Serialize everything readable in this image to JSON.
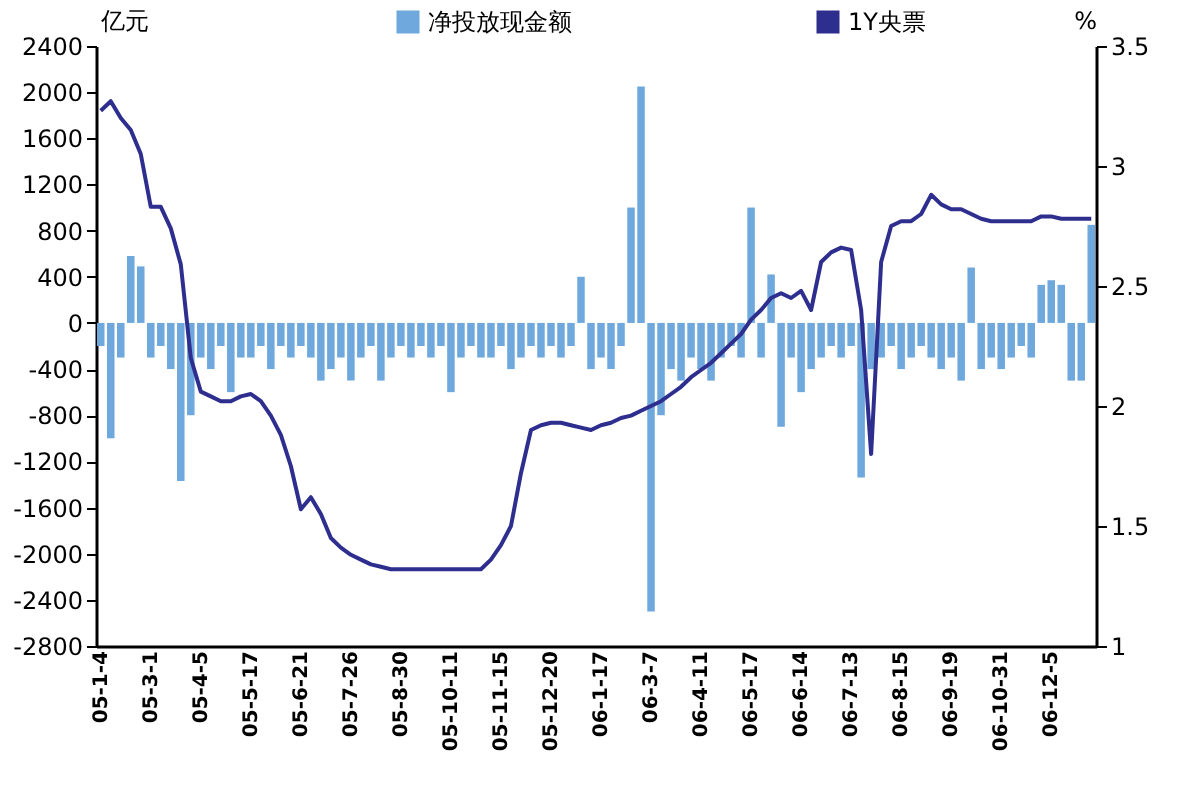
{
  "chart_data": {
    "type": "bar",
    "ylabel": "亿元",
    "y2label": "%",
    "legend": "top",
    "grid": false,
    "categories": [
      "05-1-4",
      null,
      null,
      null,
      null,
      "05-3-1",
      null,
      null,
      null,
      null,
      "05-4-5",
      null,
      null,
      null,
      null,
      "05-5-17",
      null,
      null,
      null,
      null,
      "05-6-21",
      null,
      null,
      null,
      null,
      "05-7-26",
      null,
      null,
      null,
      null,
      "05-8-30",
      null,
      null,
      null,
      null,
      "05-10-11",
      null,
      null,
      null,
      null,
      "05-11-15",
      null,
      null,
      null,
      null,
      "05-12-20",
      null,
      null,
      null,
      null,
      "06-1-17",
      null,
      null,
      null,
      null,
      "06-3-7",
      null,
      null,
      null,
      null,
      "06-4-11",
      null,
      null,
      null,
      null,
      "06-5-17",
      null,
      null,
      null,
      null,
      "06-6-14",
      null,
      null,
      null,
      null,
      "06-7-13",
      null,
      null,
      null,
      null,
      "06-8-15",
      null,
      null,
      null,
      null,
      "06-9-19",
      null,
      null,
      null,
      null,
      "06-10-31",
      null,
      null,
      null,
      null,
      "06-12-5",
      null,
      null,
      null,
      null
    ],
    "ylim": [
      -2800,
      2400
    ],
    "yticks": [
      -2800,
      -2400,
      -2000,
      -1600,
      -1200,
      -800,
      -400,
      0,
      400,
      800,
      1200,
      1600,
      2000,
      2400
    ],
    "y2lim": [
      1,
      3.5
    ],
    "y2ticks": [
      1,
      1.5,
      2,
      2.5,
      3,
      3.5
    ],
    "series": [
      {
        "name": "净投放现金额",
        "color": "#6fa8dc",
        "values": [
          -200,
          -1000,
          -300,
          580,
          490,
          -300,
          -200,
          -400,
          -1370,
          -800,
          -300,
          -400,
          -200,
          -600,
          -300,
          -300,
          -200,
          -400,
          -200,
          -300,
          -200,
          -300,
          -500,
          -400,
          -300,
          -500,
          -300,
          -200,
          -500,
          -300,
          -200,
          -300,
          -200,
          -300,
          -200,
          -600,
          -300,
          -200,
          -300,
          -300,
          -200,
          -400,
          -300,
          -200,
          -300,
          -200,
          -300,
          -200,
          400,
          -400,
          -300,
          -400,
          -200,
          1000,
          2050,
          -2500,
          -800,
          -400,
          -500,
          -300,
          -400,
          -500,
          -300,
          -200,
          -300,
          1000,
          -300,
          420,
          -900,
          -300,
          -600,
          -400,
          -300,
          -200,
          -300,
          -200,
          -1340,
          -400,
          -300,
          -200,
          -400,
          -300,
          -200,
          -300,
          -400,
          -300,
          -500,
          480,
          -400,
          -300,
          -400,
          -300,
          -200,
          -300,
          330,
          370,
          330,
          -500,
          -500,
          850
        ]
      },
      {
        "name": "1Y央票",
        "type": "line",
        "axis": "y2",
        "color": "#2e2e8f",
        "values": [
          3.23,
          3.27,
          3.2,
          3.15,
          3.05,
          2.83,
          2.83,
          2.74,
          2.59,
          2.2,
          2.06,
          2.04,
          2.02,
          2.02,
          2.04,
          2.05,
          2.02,
          1.96,
          1.88,
          1.75,
          1.57,
          1.62,
          1.55,
          1.45,
          1.41,
          1.38,
          1.36,
          1.34,
          1.33,
          1.32,
          1.32,
          1.32,
          1.32,
          1.32,
          1.32,
          1.32,
          1.32,
          1.32,
          1.32,
          1.36,
          1.42,
          1.5,
          1.72,
          1.9,
          1.92,
          1.93,
          1.93,
          1.92,
          1.91,
          1.9,
          1.92,
          1.93,
          1.95,
          1.96,
          1.98,
          2,
          2.02,
          2.05,
          2.08,
          2.12,
          2.15,
          2.18,
          2.22,
          2.26,
          2.3,
          2.36,
          2.4,
          2.45,
          2.47,
          2.45,
          2.48,
          2.4,
          2.6,
          2.64,
          2.66,
          2.65,
          2.4,
          1.8,
          2.6,
          2.75,
          2.77,
          2.77,
          2.8,
          2.88,
          2.84,
          2.82,
          2.82,
          2.8,
          2.78,
          2.77,
          2.77,
          2.77,
          2.77,
          2.77,
          2.79,
          2.79,
          2.78,
          2.78,
          2.78,
          2.78
        ]
      }
    ]
  }
}
